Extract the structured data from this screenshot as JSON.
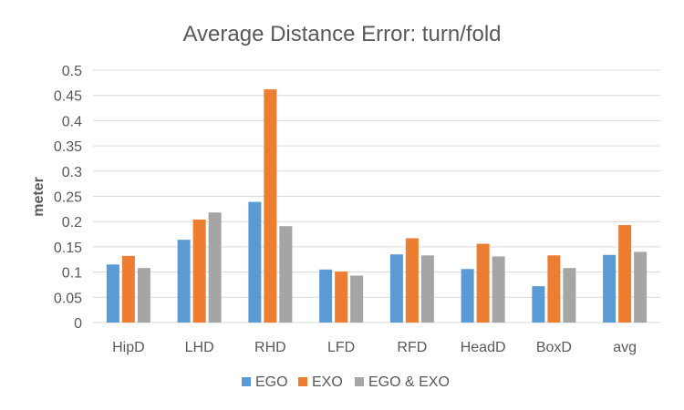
{
  "chart_data": {
    "type": "bar",
    "title": "Average Distance Error: turn/fold",
    "ylabel": "meter",
    "xlabel": "",
    "categories": [
      "HipD",
      "LHD",
      "RHD",
      "LFD",
      "RFD",
      "HeadD",
      "BoxD",
      "avg"
    ],
    "series": [
      {
        "name": "EGO",
        "color": "#5B9BD5",
        "values": [
          0.115,
          0.164,
          0.239,
          0.105,
          0.135,
          0.106,
          0.072,
          0.134
        ]
      },
      {
        "name": "EXO",
        "color": "#ED7D31",
        "values": [
          0.132,
          0.204,
          0.462,
          0.101,
          0.167,
          0.156,
          0.133,
          0.193
        ]
      },
      {
        "name": "EGO & EXO",
        "color": "#A5A5A5",
        "values": [
          0.108,
          0.218,
          0.191,
          0.093,
          0.133,
          0.131,
          0.108,
          0.14
        ]
      }
    ],
    "ylim": [
      0,
      0.5
    ],
    "yticks": [
      "0",
      "0.05",
      "0.1",
      "0.15",
      "0.2",
      "0.25",
      "0.3",
      "0.35",
      "0.4",
      "0.45",
      "0.5"
    ],
    "grid": true,
    "legend_position": "bottom"
  }
}
